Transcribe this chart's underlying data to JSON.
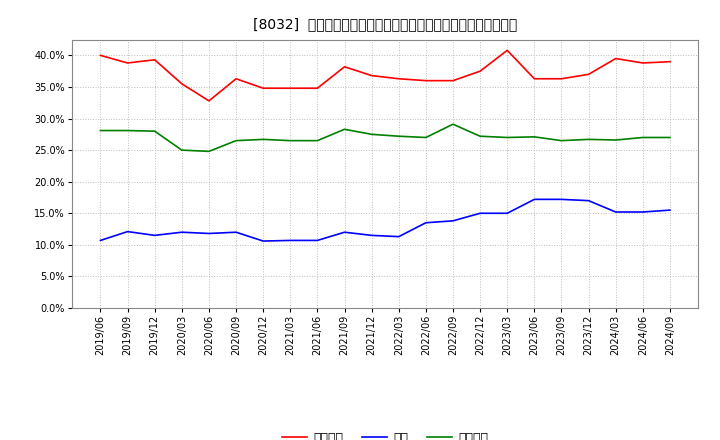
{
  "title": "[8032]  売上債権、在庫、買入債務の総資産に対する比率の推移",
  "dates": [
    "2019/06",
    "2019/09",
    "2019/12",
    "2020/03",
    "2020/06",
    "2020/09",
    "2020/12",
    "2021/03",
    "2021/06",
    "2021/09",
    "2021/12",
    "2022/03",
    "2022/06",
    "2022/09",
    "2022/12",
    "2023/03",
    "2023/06",
    "2023/09",
    "2023/12",
    "2024/03",
    "2024/06",
    "2024/09"
  ],
  "urikake": [
    0.4,
    0.388,
    0.393,
    0.355,
    0.328,
    0.363,
    0.348,
    0.348,
    0.348,
    0.382,
    0.368,
    0.363,
    0.36,
    0.36,
    0.375,
    0.408,
    0.363,
    0.363,
    0.37,
    0.395,
    0.388,
    0.39
  ],
  "zaiko": [
    0.107,
    0.121,
    0.115,
    0.12,
    0.118,
    0.12,
    0.106,
    0.107,
    0.107,
    0.12,
    0.115,
    0.113,
    0.135,
    0.138,
    0.15,
    0.15,
    0.172,
    0.172,
    0.17,
    0.152,
    0.152,
    0.155
  ],
  "kaiire": [
    0.281,
    0.281,
    0.28,
    0.25,
    0.248,
    0.265,
    0.267,
    0.265,
    0.265,
    0.283,
    0.275,
    0.272,
    0.27,
    0.291,
    0.272,
    0.27,
    0.271,
    0.265,
    0.267,
    0.266,
    0.27,
    0.27
  ],
  "urikake_color": "#ff0000",
  "zaiko_color": "#0000ff",
  "kaiire_color": "#008000",
  "legend_labels": [
    "売上債権",
    "在庫",
    "買入債務"
  ],
  "ylim": [
    0.0,
    0.425
  ],
  "yticks": [
    0.0,
    0.05,
    0.1,
    0.15,
    0.2,
    0.25,
    0.3,
    0.35,
    0.4
  ],
  "background_color": "#ffffff",
  "grid_color": "#aaaaaa",
  "title_fontsize": 10,
  "axis_fontsize": 7,
  "legend_fontsize": 9
}
